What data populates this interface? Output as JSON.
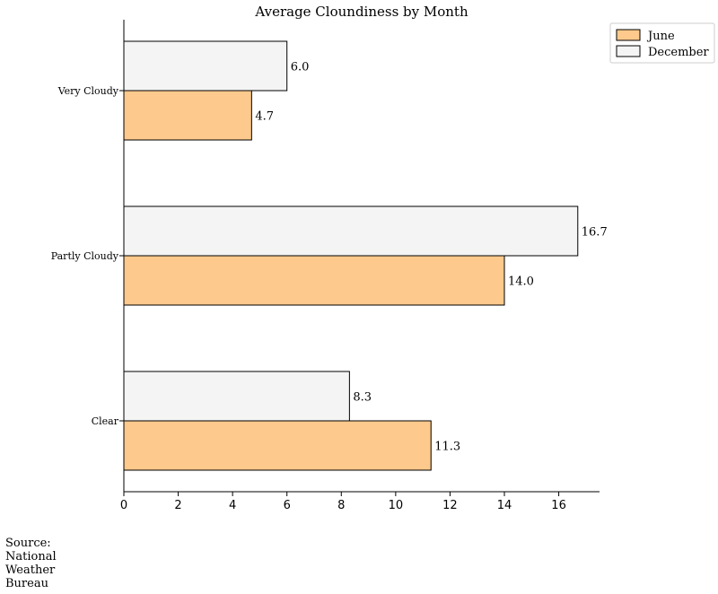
{
  "chart_data": {
    "type": "bar",
    "orientation": "horizontal",
    "title": "Average Cloundiness by Month",
    "xlabel": "",
    "ylabel": "",
    "categories": [
      "Very Cloudy",
      "Partly Cloudy",
      "Clear"
    ],
    "series": [
      {
        "name": "June",
        "values": [
          4.7,
          14.0,
          11.3
        ],
        "color": "#fdc98c"
      },
      {
        "name": "December",
        "values": [
          6.0,
          16.7,
          8.3
        ],
        "color": "#f4f4f4"
      }
    ],
    "xticks": [
      "0",
      "2",
      "4",
      "6",
      "8",
      "10",
      "12",
      "14",
      "16"
    ],
    "xlim": [
      0,
      17.5
    ],
    "grid": false,
    "legend_position": "top-right",
    "data_labels": true
  },
  "source_note": {
    "lines": [
      "Source:",
      "National",
      "Weather",
      "Bureau"
    ]
  }
}
